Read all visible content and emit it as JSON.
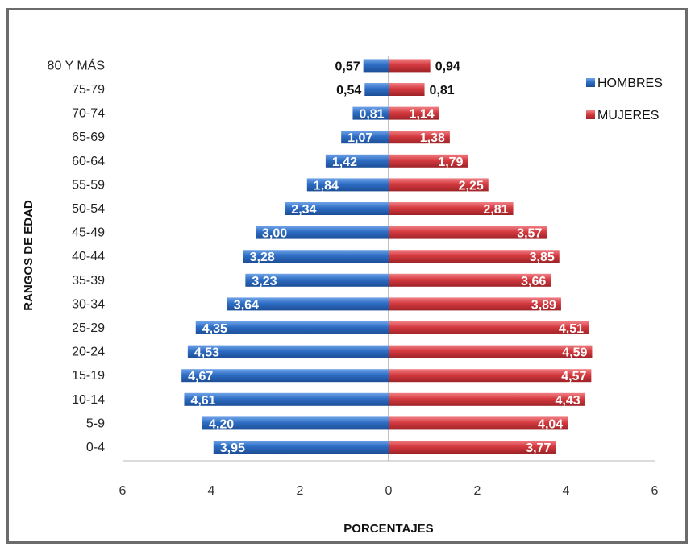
{
  "chart_data": {
    "type": "bar",
    "orientation": "horizontal",
    "variant": "population-pyramid",
    "categories": [
      "0-4",
      "5-9",
      "10-14",
      "15-19",
      "20-24",
      "25-29",
      "30-34",
      "35-39",
      "40-44",
      "45-49",
      "50-54",
      "55-59",
      "60-64",
      "65-69",
      "70-74",
      "75-79",
      "80 Y MÁS"
    ],
    "series": [
      {
        "name": "HOMBRES",
        "color": "#2E6DC4",
        "side": "left",
        "values": [
          3.95,
          4.2,
          4.61,
          4.67,
          4.53,
          4.35,
          3.64,
          3.23,
          3.28,
          3.0,
          2.34,
          1.84,
          1.42,
          1.07,
          0.81,
          0.54,
          0.57
        ],
        "labels": [
          "3,95",
          "4,20",
          "4,61",
          "4,67",
          "4,53",
          "4,35",
          "3,64",
          "3,23",
          "3,28",
          "3,00",
          "2,34",
          "1,84",
          "1,42",
          "1,07",
          "0,81",
          "0,54",
          "0,57"
        ]
      },
      {
        "name": "MUJERES",
        "color": "#D43A3F",
        "side": "right",
        "values": [
          3.77,
          4.04,
          4.43,
          4.57,
          4.59,
          4.51,
          3.89,
          3.66,
          3.85,
          3.57,
          2.81,
          2.25,
          1.79,
          1.38,
          1.14,
          0.81,
          0.94
        ],
        "labels": [
          "3,77",
          "4,04",
          "4,43",
          "4,57",
          "4,59",
          "4,51",
          "3,89",
          "3,66",
          "3,85",
          "3,57",
          "2,81",
          "2,25",
          "1,79",
          "1,38",
          "1,14",
          "0,81",
          "0,94"
        ]
      }
    ],
    "xlabel": "PORCENTAJES",
    "ylabel": "RANGOS DE EDAD",
    "xlim": [
      -6,
      6
    ],
    "xticks": [
      "6",
      "4",
      "2",
      "0",
      "2",
      "4",
      "6"
    ],
    "grid": false,
    "legend_position": "top-right"
  }
}
